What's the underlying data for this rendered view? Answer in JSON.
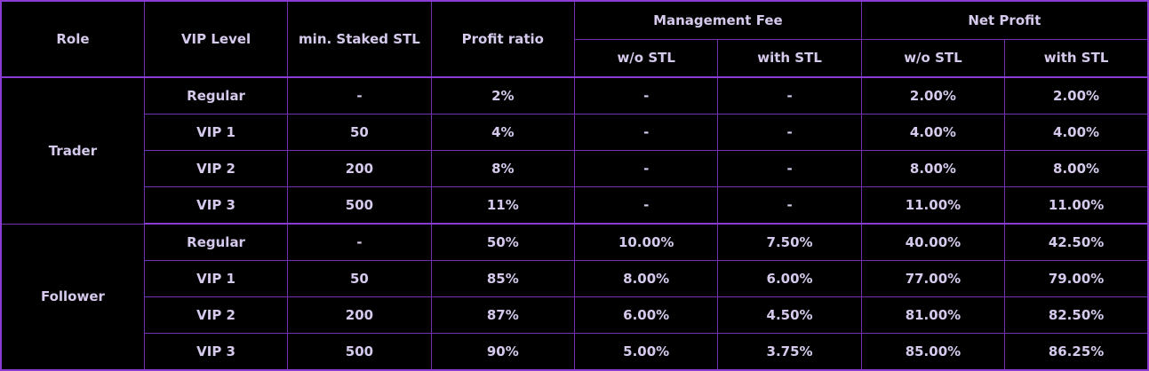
{
  "colors": {
    "background": "#000000",
    "grid_border": "#7230b2",
    "strong_border": "#8a3cd2",
    "text": "#d5c9ec"
  },
  "table": {
    "headers": {
      "role": "Role",
      "vip_level": "VIP Level",
      "min_staked_stl": "min. Staked STL",
      "profit_ratio": "Profit ratio",
      "management_fee": "Management Fee",
      "net_profit": "Net Profit",
      "without_stl": "w/o STL",
      "with_stl": "with STL"
    },
    "groups": [
      {
        "role": "Trader",
        "rows": [
          {
            "vip_level": "Regular",
            "min_staked_stl": "-",
            "profit_ratio": "2%",
            "mgmt_fee_wo_stl": "-",
            "mgmt_fee_with_stl": "-",
            "net_profit_wo_stl": "2.00%",
            "net_profit_with_stl": "2.00%"
          },
          {
            "vip_level": "VIP 1",
            "min_staked_stl": "50",
            "profit_ratio": "4%",
            "mgmt_fee_wo_stl": "-",
            "mgmt_fee_with_stl": "-",
            "net_profit_wo_stl": "4.00%",
            "net_profit_with_stl": "4.00%"
          },
          {
            "vip_level": "VIP 2",
            "min_staked_stl": "200",
            "profit_ratio": "8%",
            "mgmt_fee_wo_stl": "-",
            "mgmt_fee_with_stl": "-",
            "net_profit_wo_stl": "8.00%",
            "net_profit_with_stl": "8.00%"
          },
          {
            "vip_level": "VIP 3",
            "min_staked_stl": "500",
            "profit_ratio": "11%",
            "mgmt_fee_wo_stl": "-",
            "mgmt_fee_with_stl": "-",
            "net_profit_wo_stl": "11.00%",
            "net_profit_with_stl": "11.00%"
          }
        ]
      },
      {
        "role": "Follower",
        "rows": [
          {
            "vip_level": "Regular",
            "min_staked_stl": "-",
            "profit_ratio": "50%",
            "mgmt_fee_wo_stl": "10.00%",
            "mgmt_fee_with_stl": "7.50%",
            "net_profit_wo_stl": "40.00%",
            "net_profit_with_stl": "42.50%"
          },
          {
            "vip_level": "VIP 1",
            "min_staked_stl": "50",
            "profit_ratio": "85%",
            "mgmt_fee_wo_stl": "8.00%",
            "mgmt_fee_with_stl": "6.00%",
            "net_profit_wo_stl": "77.00%",
            "net_profit_with_stl": "79.00%"
          },
          {
            "vip_level": "VIP 2",
            "min_staked_stl": "200",
            "profit_ratio": "87%",
            "mgmt_fee_wo_stl": "6.00%",
            "mgmt_fee_with_stl": "4.50%",
            "net_profit_wo_stl": "81.00%",
            "net_profit_with_stl": "82.50%"
          },
          {
            "vip_level": "VIP 3",
            "min_staked_stl": "500",
            "profit_ratio": "90%",
            "mgmt_fee_wo_stl": "5.00%",
            "mgmt_fee_with_stl": "3.75%",
            "net_profit_wo_stl": "85.00%",
            "net_profit_with_stl": "86.25%"
          }
        ]
      }
    ]
  },
  "chart_data": {
    "type": "table",
    "title": "",
    "column_headers": [
      "Role",
      "VIP Level",
      "min. Staked STL",
      "Profit ratio",
      "Management Fee w/o STL",
      "Management Fee with STL",
      "Net Profit w/o STL",
      "Net Profit with STL"
    ],
    "rows": [
      [
        "Trader",
        "Regular",
        "-",
        "2%",
        "-",
        "-",
        "2.00%",
        "2.00%"
      ],
      [
        "Trader",
        "VIP 1",
        "50",
        "4%",
        "-",
        "-",
        "4.00%",
        "4.00%"
      ],
      [
        "Trader",
        "VIP 2",
        "200",
        "8%",
        "-",
        "-",
        "8.00%",
        "8.00%"
      ],
      [
        "Trader",
        "VIP 3",
        "500",
        "11%",
        "-",
        "-",
        "11.00%",
        "11.00%"
      ],
      [
        "Follower",
        "Regular",
        "-",
        "50%",
        "10.00%",
        "7.50%",
        "40.00%",
        "42.50%"
      ],
      [
        "Follower",
        "VIP 1",
        "50",
        "85%",
        "8.00%",
        "6.00%",
        "77.00%",
        "79.00%"
      ],
      [
        "Follower",
        "VIP 2",
        "200",
        "87%",
        "6.00%",
        "4.50%",
        "81.00%",
        "82.50%"
      ],
      [
        "Follower",
        "VIP 3",
        "500",
        "90%",
        "5.00%",
        "3.75%",
        "85.00%",
        "86.25%"
      ]
    ]
  }
}
